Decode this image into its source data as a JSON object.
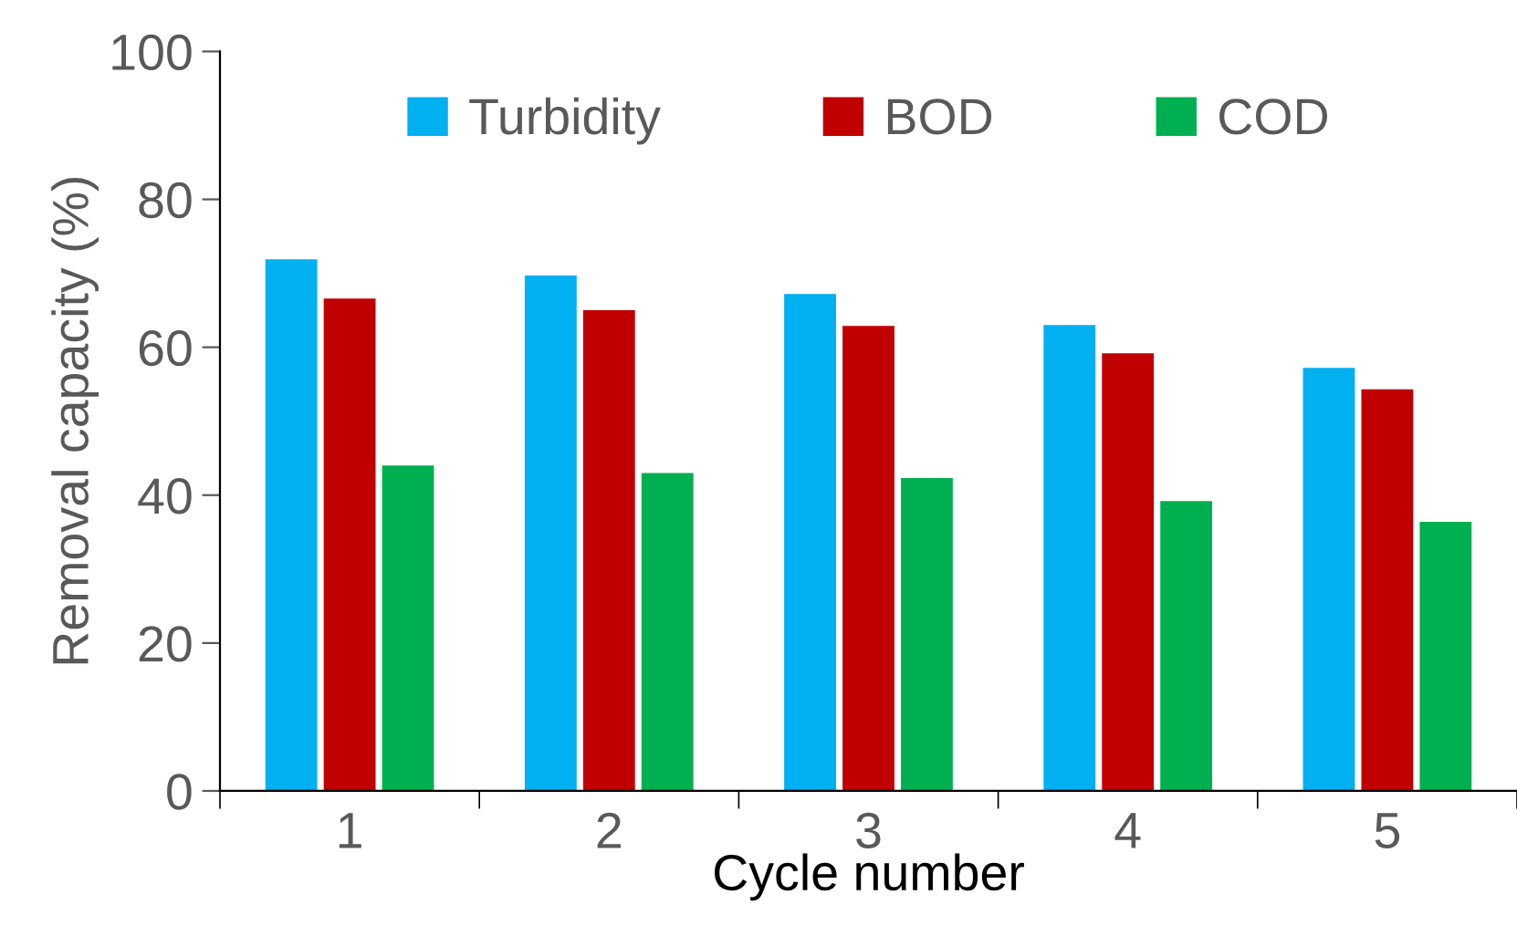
{
  "chart_data": {
    "type": "bar",
    "xlabel": "Cycle number",
    "ylabel": "Removal capacity (%)",
    "categories": [
      "1",
      "2",
      "3",
      "4",
      "5"
    ],
    "series": [
      {
        "name": "Turbidity",
        "color": "#00b0f0",
        "values": [
          71.9,
          69.7,
          67.2,
          63.0,
          57.2
        ]
      },
      {
        "name": "BOD",
        "color": "#c00000",
        "values": [
          66.6,
          65.0,
          62.9,
          59.2,
          54.3
        ]
      },
      {
        "name": "COD",
        "color": "#00b050",
        "values": [
          44.0,
          43.0,
          42.3,
          39.2,
          36.4
        ]
      }
    ],
    "ylim": [
      0,
      100
    ],
    "yticks": [
      0,
      20,
      40,
      60,
      80,
      100
    ],
    "grid": false,
    "legend": "top"
  }
}
